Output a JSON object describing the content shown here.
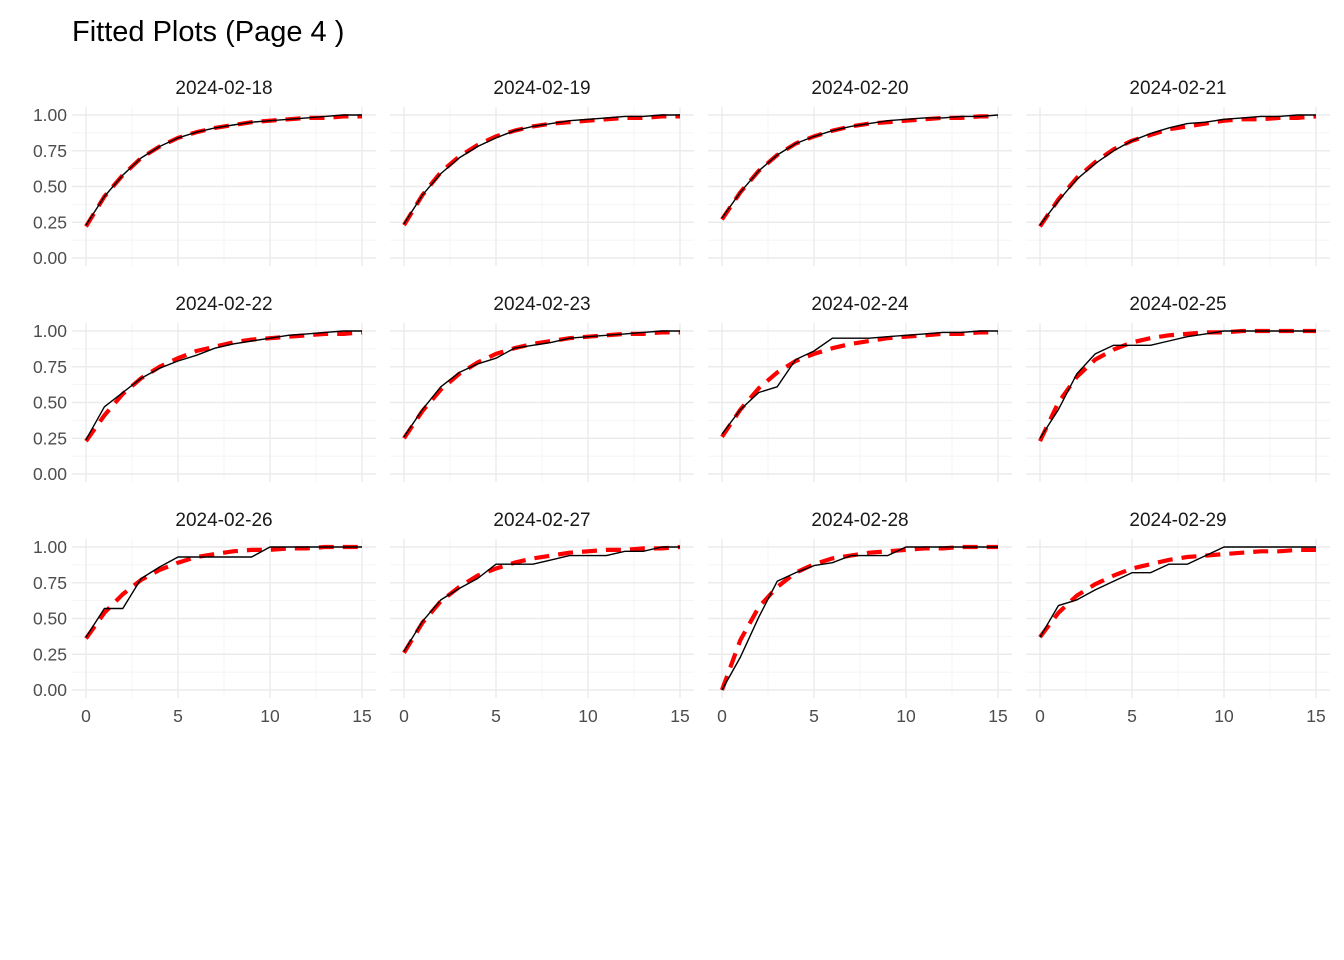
{
  "chart_data": {
    "type": "line",
    "title": "Fitted Plots (Page 4 )",
    "xlabel": "",
    "ylabel": "",
    "xlim": [
      0,
      15
    ],
    "ylim": [
      0,
      1
    ],
    "x_ticks": [
      "0",
      "5",
      "10",
      "15"
    ],
    "y_ticks": [
      "0.00",
      "0.25",
      "0.50",
      "0.75",
      "1.00"
    ],
    "grid": true,
    "legend": "none",
    "colors": {
      "observed": "#000000",
      "fitted": "#ff0000"
    },
    "series_styles": {
      "observed": "solid",
      "fitted": "dashed"
    },
    "panels": [
      {
        "label": "2024-02-18",
        "observed": {
          "x": [
            0,
            1,
            2,
            3,
            4,
            5,
            6,
            7,
            8,
            9,
            10,
            11,
            12,
            13,
            14,
            15
          ],
          "y": [
            0.23,
            0.43,
            0.58,
            0.7,
            0.78,
            0.84,
            0.88,
            0.91,
            0.93,
            0.95,
            0.96,
            0.97,
            0.98,
            0.99,
            1.0,
            1.0
          ]
        },
        "fitted": {
          "x": [
            0,
            1,
            2,
            3,
            4,
            5,
            6,
            7,
            8,
            9,
            10,
            11,
            12,
            13,
            14,
            15
          ],
          "y": [
            0.22,
            0.43,
            0.58,
            0.7,
            0.78,
            0.84,
            0.88,
            0.91,
            0.93,
            0.95,
            0.96,
            0.97,
            0.98,
            0.98,
            0.99,
            0.99
          ]
        }
      },
      {
        "label": "2024-02-19",
        "observed": {
          "x": [
            0,
            1,
            2,
            3,
            4,
            5,
            6,
            7,
            8,
            9,
            10,
            11,
            12,
            13,
            14,
            15
          ],
          "y": [
            0.24,
            0.44,
            0.59,
            0.7,
            0.78,
            0.84,
            0.89,
            0.92,
            0.94,
            0.96,
            0.97,
            0.98,
            0.99,
            0.99,
            1.0,
            1.0
          ]
        },
        "fitted": {
          "x": [
            0,
            1,
            2,
            3,
            4,
            5,
            6,
            7,
            8,
            9,
            10,
            11,
            12,
            13,
            14,
            15
          ],
          "y": [
            0.23,
            0.44,
            0.6,
            0.71,
            0.79,
            0.85,
            0.89,
            0.92,
            0.94,
            0.95,
            0.96,
            0.97,
            0.98,
            0.98,
            0.99,
            0.99
          ]
        }
      },
      {
        "label": "2024-02-20",
        "observed": {
          "x": [
            0,
            1,
            2,
            3,
            4,
            5,
            6,
            7,
            8,
            9,
            10,
            11,
            12,
            13,
            14,
            15
          ],
          "y": [
            0.28,
            0.46,
            0.61,
            0.72,
            0.8,
            0.85,
            0.89,
            0.92,
            0.94,
            0.96,
            0.97,
            0.98,
            0.98,
            0.99,
            0.99,
            1.0
          ]
        },
        "fitted": {
          "x": [
            0,
            1,
            2,
            3,
            4,
            5,
            6,
            7,
            8,
            9,
            10,
            11,
            12,
            13,
            14,
            15
          ],
          "y": [
            0.27,
            0.46,
            0.61,
            0.72,
            0.8,
            0.85,
            0.89,
            0.92,
            0.94,
            0.95,
            0.96,
            0.97,
            0.98,
            0.98,
            0.99,
            0.99
          ]
        }
      },
      {
        "label": "2024-02-21",
        "observed": {
          "x": [
            0,
            1,
            2,
            3,
            4,
            5,
            6,
            7,
            8,
            9,
            10,
            11,
            12,
            13,
            14,
            15
          ],
          "y": [
            0.23,
            0.4,
            0.55,
            0.66,
            0.75,
            0.82,
            0.87,
            0.91,
            0.94,
            0.95,
            0.97,
            0.98,
            0.99,
            0.99,
            1.0,
            1.0
          ]
        },
        "fitted": {
          "x": [
            0,
            1,
            2,
            3,
            4,
            5,
            6,
            7,
            8,
            9,
            10,
            11,
            12,
            13,
            14,
            15
          ],
          "y": [
            0.22,
            0.41,
            0.56,
            0.67,
            0.76,
            0.82,
            0.86,
            0.9,
            0.92,
            0.94,
            0.96,
            0.97,
            0.97,
            0.98,
            0.98,
            0.99
          ]
        }
      },
      {
        "label": "2024-02-22",
        "observed": {
          "x": [
            0,
            1,
            2,
            3,
            4,
            5,
            6,
            7,
            8,
            9,
            10,
            11,
            12,
            13,
            14,
            15
          ],
          "y": [
            0.24,
            0.47,
            0.57,
            0.67,
            0.74,
            0.79,
            0.83,
            0.88,
            0.91,
            0.93,
            0.95,
            0.97,
            0.98,
            0.99,
            1.0,
            1.0
          ]
        },
        "fitted": {
          "x": [
            0,
            1,
            2,
            3,
            4,
            5,
            6,
            7,
            8,
            9,
            10,
            11,
            12,
            13,
            14,
            15
          ],
          "y": [
            0.23,
            0.41,
            0.56,
            0.67,
            0.75,
            0.81,
            0.86,
            0.89,
            0.92,
            0.94,
            0.95,
            0.96,
            0.97,
            0.98,
            0.98,
            0.99
          ]
        }
      },
      {
        "label": "2024-02-23",
        "observed": {
          "x": [
            0,
            1,
            2,
            3,
            4,
            5,
            6,
            7,
            8,
            9,
            10,
            11,
            12,
            13,
            14,
            15
          ],
          "y": [
            0.26,
            0.45,
            0.61,
            0.71,
            0.77,
            0.81,
            0.88,
            0.9,
            0.92,
            0.95,
            0.96,
            0.97,
            0.98,
            0.99,
            1.0,
            1.0
          ]
        },
        "fitted": {
          "x": [
            0,
            1,
            2,
            3,
            4,
            5,
            6,
            7,
            8,
            9,
            10,
            11,
            12,
            13,
            14,
            15
          ],
          "y": [
            0.25,
            0.44,
            0.59,
            0.7,
            0.78,
            0.84,
            0.88,
            0.91,
            0.93,
            0.95,
            0.96,
            0.97,
            0.98,
            0.98,
            0.99,
            0.99
          ]
        }
      },
      {
        "label": "2024-02-24",
        "observed": {
          "x": [
            0,
            1,
            2,
            3,
            4,
            5,
            6,
            7,
            8,
            9,
            10,
            11,
            12,
            13,
            14,
            15
          ],
          "y": [
            0.28,
            0.45,
            0.57,
            0.61,
            0.8,
            0.86,
            0.95,
            0.95,
            0.95,
            0.96,
            0.97,
            0.98,
            0.99,
            0.99,
            1.0,
            1.0
          ]
        },
        "fitted": {
          "x": [
            0,
            1,
            2,
            3,
            4,
            5,
            6,
            7,
            8,
            9,
            10,
            11,
            12,
            13,
            14,
            15
          ],
          "y": [
            0.26,
            0.45,
            0.6,
            0.71,
            0.79,
            0.84,
            0.88,
            0.91,
            0.93,
            0.95,
            0.96,
            0.97,
            0.98,
            0.98,
            0.99,
            0.99
          ]
        }
      },
      {
        "label": "2024-02-25",
        "observed": {
          "x": [
            0,
            1,
            2,
            3,
            4,
            5,
            6,
            7,
            8,
            9,
            10,
            11,
            12,
            13,
            14,
            15
          ],
          "y": [
            0.25,
            0.45,
            0.7,
            0.84,
            0.9,
            0.9,
            0.9,
            0.93,
            0.96,
            0.98,
            1.0,
            1.0,
            1.0,
            1.0,
            1.0,
            1.0
          ]
        },
        "fitted": {
          "x": [
            0,
            1,
            2,
            3,
            4,
            5,
            6,
            7,
            8,
            9,
            10,
            11,
            12,
            13,
            14,
            15
          ],
          "y": [
            0.23,
            0.5,
            0.68,
            0.8,
            0.87,
            0.92,
            0.95,
            0.97,
            0.98,
            0.99,
            0.99,
            1.0,
            1.0,
            1.0,
            1.0,
            1.0
          ]
        }
      },
      {
        "label": "2024-02-26",
        "observed": {
          "x": [
            0,
            1,
            2,
            3,
            4,
            5,
            6,
            7,
            8,
            9,
            10,
            11,
            12,
            13,
            14,
            15
          ],
          "y": [
            0.37,
            0.57,
            0.57,
            0.78,
            0.86,
            0.93,
            0.93,
            0.93,
            0.93,
            0.93,
            1.0,
            1.0,
            1.0,
            1.0,
            1.0,
            1.0
          ]
        },
        "fitted": {
          "x": [
            0,
            1,
            2,
            3,
            4,
            5,
            6,
            7,
            8,
            9,
            10,
            11,
            12,
            13,
            14,
            15
          ],
          "y": [
            0.36,
            0.54,
            0.67,
            0.77,
            0.84,
            0.89,
            0.93,
            0.95,
            0.97,
            0.98,
            0.98,
            0.99,
            0.99,
            1.0,
            1.0,
            1.0
          ]
        }
      },
      {
        "label": "2024-02-27",
        "observed": {
          "x": [
            0,
            1,
            2,
            3,
            4,
            5,
            6,
            7,
            8,
            9,
            10,
            11,
            12,
            13,
            14,
            15
          ],
          "y": [
            0.27,
            0.48,
            0.63,
            0.71,
            0.78,
            0.88,
            0.88,
            0.88,
            0.91,
            0.94,
            0.94,
            0.94,
            0.97,
            0.97,
            1.0,
            1.0
          ]
        },
        "fitted": {
          "x": [
            0,
            1,
            2,
            3,
            4,
            5,
            6,
            7,
            8,
            9,
            10,
            11,
            12,
            13,
            14,
            15
          ],
          "y": [
            0.26,
            0.47,
            0.62,
            0.72,
            0.8,
            0.85,
            0.89,
            0.92,
            0.94,
            0.96,
            0.97,
            0.98,
            0.98,
            0.99,
            0.99,
            1.0
          ]
        }
      },
      {
        "label": "2024-02-28",
        "observed": {
          "x": [
            0,
            1,
            2,
            3,
            4,
            5,
            6,
            7,
            8,
            9,
            10,
            11,
            12,
            13,
            14,
            15
          ],
          "y": [
            0.0,
            0.23,
            0.51,
            0.76,
            0.82,
            0.87,
            0.89,
            0.94,
            0.94,
            0.94,
            1.0,
            1.0,
            1.0,
            1.0,
            1.0,
            1.0
          ]
        },
        "fitted": {
          "x": [
            0,
            1,
            2,
            3,
            4,
            5,
            6,
            7,
            8,
            9,
            10,
            11,
            12,
            13,
            14,
            15
          ],
          "y": [
            0.0,
            0.35,
            0.58,
            0.72,
            0.82,
            0.88,
            0.92,
            0.94,
            0.96,
            0.97,
            0.98,
            0.99,
            0.99,
            1.0,
            1.0,
            1.0
          ]
        }
      },
      {
        "label": "2024-02-29",
        "observed": {
          "x": [
            0,
            1,
            2,
            3,
            4,
            5,
            6,
            7,
            8,
            9,
            10,
            11,
            12,
            13,
            14,
            15
          ],
          "y": [
            0.37,
            0.59,
            0.63,
            0.7,
            0.76,
            0.82,
            0.82,
            0.88,
            0.88,
            0.94,
            1.0,
            1.0,
            1.0,
            1.0,
            1.0,
            1.0
          ]
        },
        "fitted": {
          "x": [
            0,
            1,
            2,
            3,
            4,
            5,
            6,
            7,
            8,
            9,
            10,
            11,
            12,
            13,
            14,
            15
          ],
          "y": [
            0.37,
            0.54,
            0.66,
            0.74,
            0.8,
            0.85,
            0.88,
            0.91,
            0.93,
            0.94,
            0.95,
            0.96,
            0.97,
            0.97,
            0.98,
            0.98
          ]
        }
      }
    ]
  }
}
